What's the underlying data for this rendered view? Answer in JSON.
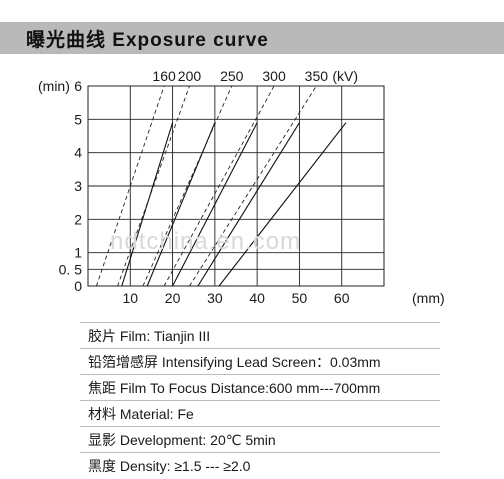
{
  "header": {
    "title": "曝光曲线 Exposure curve"
  },
  "watermark": "ndtchina.en.com",
  "chart_data": {
    "type": "line",
    "title": "曝光曲线 Exposure curve",
    "xlabel": "(mm)",
    "ylabel": "(min)",
    "series_unit": "(kV)",
    "x_ticks": [
      10,
      20,
      30,
      40,
      50,
      60
    ],
    "y_ticks": [
      0,
      0.5,
      1,
      2,
      3,
      4,
      5,
      6
    ],
    "y_tick_labels": [
      "0",
      "0. 5",
      "1",
      "2",
      "3",
      "4",
      "5",
      "6"
    ],
    "xlim": [
      0,
      70
    ],
    "ylim": [
      0,
      6
    ],
    "grid": true,
    "series": [
      {
        "name": "160",
        "solid": [
          [
            8,
            0
          ],
          [
            20,
            4.9
          ]
        ],
        "dashed": [
          [
            2,
            0
          ],
          [
            18,
            6
          ]
        ]
      },
      {
        "name": "200",
        "solid": [
          [
            14,
            0
          ],
          [
            30,
            4.9
          ]
        ],
        "dashed": [
          [
            7,
            0
          ],
          [
            24,
            6
          ]
        ]
      },
      {
        "name": "250",
        "solid": [
          [
            20,
            0
          ],
          [
            40,
            4.9
          ]
        ],
        "dashed": [
          [
            13,
            0
          ],
          [
            34,
            6
          ]
        ]
      },
      {
        "name": "300",
        "solid": [
          [
            26,
            0
          ],
          [
            50,
            4.9
          ]
        ],
        "dashed": [
          [
            18,
            0
          ],
          [
            44,
            6
          ]
        ]
      },
      {
        "name": "350",
        "solid": [
          [
            31,
            0
          ],
          [
            61,
            4.9
          ]
        ],
        "dashed": [
          [
            24,
            0
          ],
          [
            54,
            6
          ]
        ]
      }
    ]
  },
  "specs": [
    "胶片 Film: Tianjin III",
    "铅箔增感屏 Intensifying Lead Screen：0.03mm",
    "焦距 Film To Focus Distance:600 mm---700mm",
    "材料 Material: Fe",
    "显影 Development: 20℃ 5min",
    "黑度 Density: ≥1.5 --- ≥2.0"
  ]
}
